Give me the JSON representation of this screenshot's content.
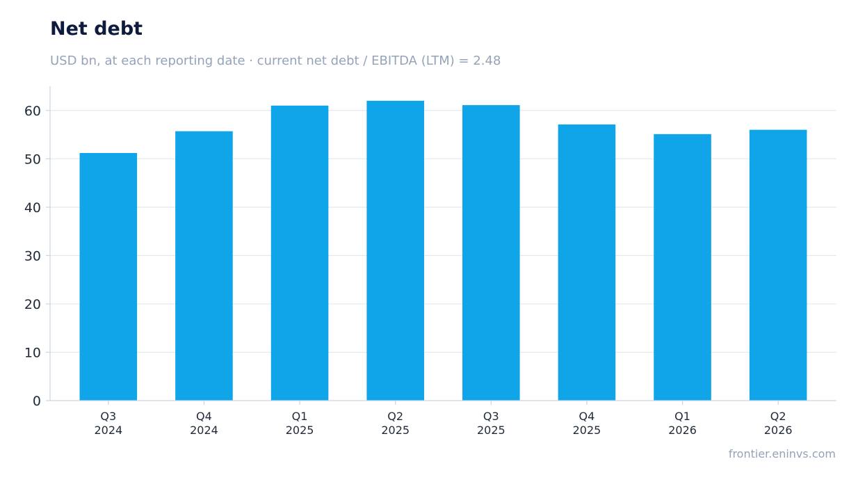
{
  "header": {
    "title": "Net debt",
    "subtitle": "USD bn, at each reporting date · current net debt / EBITDA (LTM) = 2.48"
  },
  "footer": {
    "source": "frontier.eninvs.com"
  },
  "colors": {
    "bar": "#10a5e8",
    "grid": "#e2e8f0",
    "axis": "#cbd5e1",
    "tick_text": "#1f2937"
  },
  "chart_data": {
    "type": "bar",
    "title": "Net debt",
    "subtitle": "USD bn, at each reporting date · current net debt / EBITDA (LTM) = 2.48",
    "categories": [
      "Q3\n2024",
      "Q4\n2024",
      "Q1\n2025",
      "Q2\n2025",
      "Q3\n2025",
      "Q4\n2025",
      "Q1\n2026",
      "Q2\n2026"
    ],
    "values": [
      51.2,
      55.7,
      61.0,
      62.0,
      61.1,
      57.1,
      55.1,
      56.0
    ],
    "xlabel": "",
    "ylabel": "",
    "ylim": [
      0,
      65
    ],
    "yticks": [
      0,
      10,
      20,
      30,
      40,
      50,
      60
    ],
    "grid": true,
    "legend": false
  }
}
